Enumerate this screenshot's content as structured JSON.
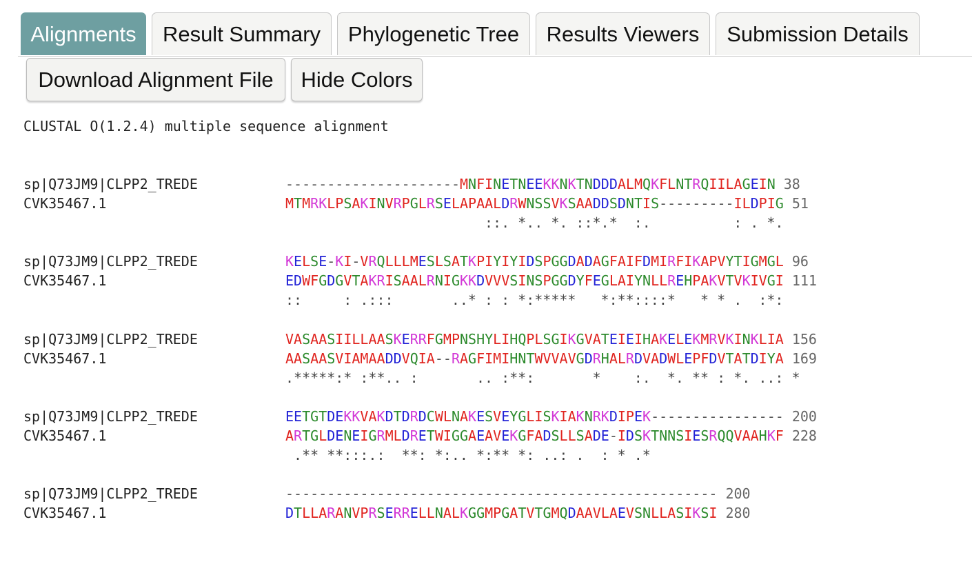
{
  "tabs": [
    {
      "label": "Alignments",
      "active": true
    },
    {
      "label": "Result Summary",
      "active": false
    },
    {
      "label": "Phylogenetic Tree",
      "active": false
    },
    {
      "label": "Results Viewers",
      "active": false
    },
    {
      "label": "Submission Details",
      "active": false
    }
  ],
  "buttons": {
    "download_label": "Download Alignment File",
    "hide_colors_label": "Hide Colors"
  },
  "alignment": {
    "header": "CLUSTAL O(1.2.4) multiple sequence alignment",
    "blocks": [
      {
        "rows": [
          {
            "name": "sp|Q73JM9|CLPP2_TREDE",
            "seq": "---------------------MNFINETNEEKKNKTNDDDALMQKFLNTRQIILAGEIN",
            "num": "38"
          },
          {
            "name": "CVK35467.1",
            "seq": "MTMRKLPSAKINVRPGLRSELAPAALDRWNSSVKSAADDSDNTIS---------ILDPIG",
            "num": "51"
          }
        ],
        "cons": "                        ::. *.. *. ::*.*  :.          : . *."
      },
      {
        "rows": [
          {
            "name": "sp|Q73JM9|CLPP2_TREDE",
            "seq": "KELSE-KI-VRQLLLMESLSATKPIYIYIDSPGGDADAGFAIFDMIRFIKAPVYTIGMGL",
            "num": "96"
          },
          {
            "name": "CVK35467.1",
            "seq": "EDWFGDGVTAKRISAALRNIGKKDVVVSINSPGGDYFEGLAIYNLLREHPAKVTVKIVGI",
            "num": "111"
          }
        ],
        "cons": "::     : .:::       ..* : : *:*****   *:**::::*   * * .  :*:"
      },
      {
        "rows": [
          {
            "name": "sp|Q73JM9|CLPP2_TREDE",
            "seq": "VASAASIILLAASKERRFGMPNSHYLIHQPLSGIKGVATEIEIHAKELEKMRVKINKLIA",
            "num": "156"
          },
          {
            "name": "CVK35467.1",
            "seq": "AASAASVIAMAADDVQIA--RAGFIMIHNTWVVAVGDRHALRDVADWLEPFDVTATDIYA",
            "num": "169"
          }
        ],
        "cons": ".*****:* :**.. :       .. :**:       *    :.  *. ** : *. ..: *"
      },
      {
        "rows": [
          {
            "name": "sp|Q73JM9|CLPP2_TREDE",
            "seq": "EETGTDEKKVAKDTDRDCWLNAKESVEYGLISKIAKNRKDIPEK----------------",
            "num": "200"
          },
          {
            "name": "CVK35467.1",
            "seq": "ARTGLDENEIGRMLDRETWIGGAEAVEKGFADSLLSADE-IDSKTNNSIESRQQVAAHKF",
            "num": "228"
          }
        ],
        "cons": " .** **:::.:  **: *:.. *:** *: ..: .  : * .*"
      },
      {
        "rows": [
          {
            "name": "sp|Q73JM9|CLPP2_TREDE",
            "seq": "----------------------------------------------------",
            "num": "200"
          },
          {
            "name": "CVK35467.1",
            "seq": "DTLLARANVPRSERRELLNALKGGMPGATVTGMQDAAVLAEVSNLLASIKSI",
            "num": "280"
          }
        ],
        "cons": ""
      }
    ]
  },
  "colors": {
    "active_tab": "#6e9fa1",
    "hydrophobic_red": "#e0241f",
    "acidic_blue": "#2222d6",
    "basic_magenta": "#d237d6",
    "polar_green": "#2c8a2c"
  }
}
